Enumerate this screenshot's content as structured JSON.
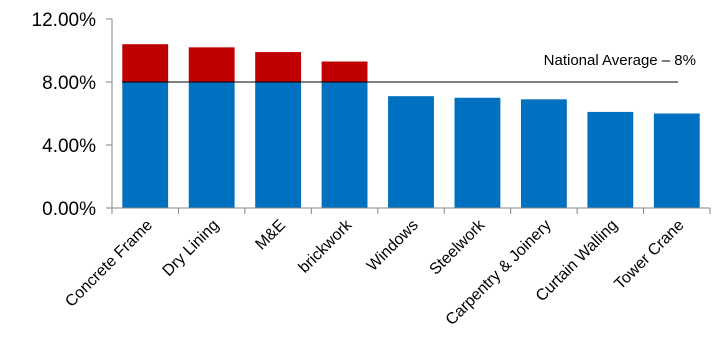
{
  "chart_data": {
    "type": "bar",
    "stacked": true,
    "categories": [
      "Concrete Frame",
      "Dry Lining",
      "M&E",
      "brickwork",
      "Windows",
      "Steelwork",
      "Carpentry & Joinery",
      "Curtain Walling",
      "Tower Crane"
    ],
    "series": [
      {
        "color": "#0070c0",
        "values": [
          8.0,
          8.0,
          8.0,
          8.0,
          7.1,
          7.0,
          6.9,
          6.1,
          6.0
        ]
      },
      {
        "color": "#c00000",
        "values": [
          2.4,
          2.2,
          1.9,
          1.3,
          0,
          0,
          0,
          0,
          0
        ]
      }
    ],
    "totals": [
      10.4,
      10.2,
      9.9,
      9.3,
      7.1,
      7.0,
      6.9,
      6.1,
      6.0
    ],
    "ylim": [
      0,
      12
    ],
    "yticks": [
      0,
      4,
      8,
      12
    ],
    "ytick_labels": [
      "0.00%",
      "4.00%",
      "8.00%",
      "12.00%"
    ],
    "reference_line": {
      "value": 8,
      "label": "National Average – 8%",
      "color": "#000000"
    },
    "grid": false,
    "legend": "none"
  }
}
